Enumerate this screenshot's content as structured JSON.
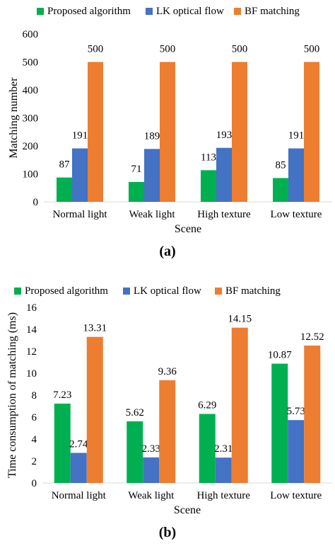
{
  "chart_data": [
    {
      "type": "bar",
      "caption": "(a)",
      "categories": [
        "Normal light",
        "Weak light",
        "High texture",
        "Low texture"
      ],
      "series": [
        {
          "name": "Proposed algorithm",
          "color": "#00b050",
          "values": [
            87,
            71,
            113,
            85
          ],
          "labels": [
            "87",
            "71",
            "113",
            "85"
          ]
        },
        {
          "name": "LK optical flow",
          "color": "#4472c4",
          "values": [
            191,
            189,
            193,
            191
          ],
          "labels": [
            "191",
            "189",
            "193",
            "191"
          ]
        },
        {
          "name": "BF matching",
          "color": "#ed7d31",
          "values": [
            500,
            500,
            500,
            500
          ],
          "labels": [
            "500",
            "500",
            "500",
            "500"
          ]
        }
      ],
      "xlabel": "Scene",
      "ylabel": "Matching number",
      "ylim": [
        0,
        600
      ],
      "yticks": [
        "0",
        "100",
        "200",
        "300",
        "400",
        "500",
        "600"
      ],
      "grid": false,
      "legend": "top"
    },
    {
      "type": "bar",
      "caption": "(b)",
      "categories": [
        "Normal light",
        "Weak light",
        "High texture",
        "Low texture"
      ],
      "series": [
        {
          "name": "Proposed algorithm",
          "color": "#00b050",
          "values": [
            7.23,
            5.62,
            6.29,
            10.87
          ],
          "labels": [
            "7.23",
            "5.62",
            "6.29",
            "10.87"
          ]
        },
        {
          "name": "LK optical flow",
          "color": "#4472c4",
          "values": [
            2.74,
            2.33,
            2.31,
            5.73
          ],
          "labels": [
            "2.74",
            "2.33",
            "2.31",
            "5.73"
          ]
        },
        {
          "name": "BF matching",
          "color": "#ed7d31",
          "values": [
            13.31,
            9.36,
            14.15,
            12.52
          ],
          "labels": [
            "13.31",
            "9.36",
            "14.15",
            "12.52"
          ]
        }
      ],
      "xlabel": "Scene",
      "ylabel": "Time consumption of matching (ms)",
      "ylim": [
        0,
        16
      ],
      "yticks": [
        "0",
        "2",
        "4",
        "6",
        "8",
        "10",
        "12",
        "14",
        "16"
      ],
      "grid": false,
      "legend": "top"
    }
  ]
}
